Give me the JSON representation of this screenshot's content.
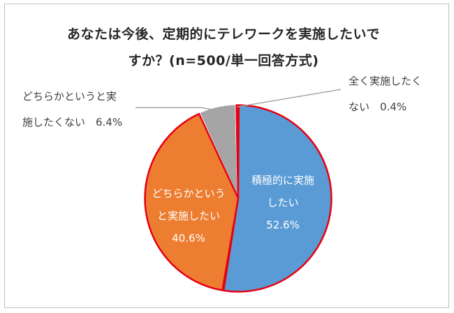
{
  "chart_data": {
    "type": "pie",
    "title_line1": "あなたは今後、定期的にテレワークを実施したいで",
    "title_line2": "すか？(n=500/単一回答方式)",
    "slices": [
      {
        "label_line1": "積極的に実施",
        "label_line2": "したい",
        "value": 52.6,
        "value_label": "52.6%",
        "color": "#5b9bd5"
      },
      {
        "label_line1": "どちらかという",
        "label_line2": "と実施したい",
        "value": 40.6,
        "value_label": "40.6%",
        "color": "#ed7d31"
      },
      {
        "label_line1": "どちらかというと実",
        "label_line2": "施したくない　6.4%",
        "value": 6.4,
        "value_label": "6.4%",
        "color": "#a5a5a5"
      },
      {
        "label_line1": "全く実施したく",
        "label_line2": "ない　0.4%",
        "value": 0.4,
        "value_label": "0.4%",
        "color": "#ffc000"
      }
    ],
    "highlight_color": "#e60012",
    "leader_line_color": "#a5a5a5"
  }
}
